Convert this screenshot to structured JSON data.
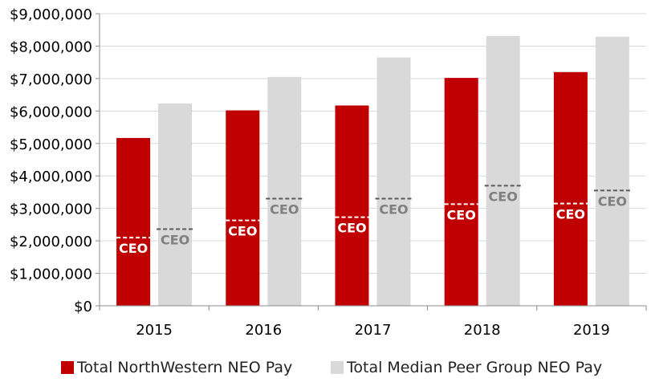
{
  "chart_data": {
    "type": "bar",
    "title": "",
    "xlabel": "",
    "ylabel": "",
    "categories": [
      "2015",
      "2016",
      "2017",
      "2018",
      "2019"
    ],
    "ylim": [
      0,
      9000000
    ],
    "yticks": [
      0,
      1000000,
      2000000,
      3000000,
      4000000,
      5000000,
      6000000,
      7000000,
      8000000,
      9000000
    ],
    "ytick_labels": [
      "$0",
      "$1,000,000",
      "$2,000,000",
      "$3,000,000",
      "$4,000,000",
      "$5,000,000",
      "$6,000,000",
      "$7,000,000",
      "$8,000,000",
      "$9,000,000"
    ],
    "gridlines": true,
    "series": [
      {
        "name": "Total NorthWestern NEO Pay",
        "color": "#c00000",
        "values": [
          5170000,
          6020000,
          6170000,
          7020000,
          7200000
        ],
        "ceo_values": [
          2100000,
          2630000,
          2730000,
          3130000,
          3150000
        ],
        "ceo_label": "CEO",
        "ceo_label_color": "#ffffff"
      },
      {
        "name": "Total Median Peer Group NEO Pay",
        "color": "#d9d9d9",
        "values": [
          6230000,
          7050000,
          7650000,
          8310000,
          8290000
        ],
        "ceo_values": [
          2360000,
          3300000,
          3300000,
          3700000,
          3550000
        ],
        "ceo_label": "CEO",
        "ceo_label_color": "#7f7f7f"
      }
    ],
    "legend_position": "bottom"
  }
}
